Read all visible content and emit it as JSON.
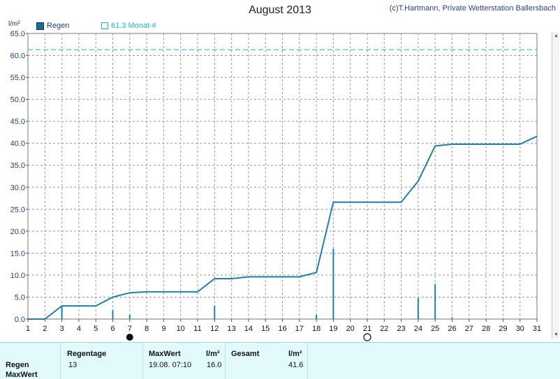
{
  "title": "August 2013",
  "credit": "(c)T.Hartmann, Private Wetterstation Ballersbach",
  "colors": {
    "accent": "#1f7fb0",
    "reference": "#3cc8d6",
    "panel": "#e2fafb"
  },
  "legend": {
    "series_label": "Regen",
    "reference_label": "61.3 Monat-#"
  },
  "chart_data": {
    "type": "line",
    "ylabel": "l/m²",
    "xlim": [
      1,
      31
    ],
    "ylim": [
      0,
      65
    ],
    "yticks": [
      "0.0",
      "5.0",
      "10.0",
      "15.0",
      "20.0",
      "25.0",
      "30.0",
      "35.0",
      "40.0",
      "45.0",
      "50.0",
      "55.0",
      "60.0",
      "65.0"
    ],
    "xticks": [
      "1",
      "2",
      "3",
      "4",
      "5",
      "6",
      "7",
      "8",
      "9",
      "10",
      "11",
      "12",
      "13",
      "14",
      "15",
      "16",
      "17",
      "18",
      "19",
      "20",
      "21",
      "22",
      "23",
      "24",
      "25",
      "26",
      "27",
      "28",
      "29",
      "30",
      "31"
    ],
    "grid": true,
    "reference_line": {
      "value": 61.3,
      "label": "61.3 Monat-#"
    },
    "cumulative": {
      "x": [
        1,
        2,
        3,
        4,
        5,
        6,
        7,
        8,
        9,
        10,
        11,
        12,
        13,
        14,
        15,
        16,
        17,
        18,
        19,
        20,
        21,
        22,
        23,
        24,
        25,
        26,
        27,
        28,
        29,
        30,
        31
      ],
      "y": [
        0,
        0,
        3.0,
        3.0,
        3.0,
        5.0,
        6.0,
        6.2,
        6.2,
        6.2,
        6.2,
        9.2,
        9.2,
        9.6,
        9.6,
        9.6,
        9.6,
        10.6,
        26.6,
        26.6,
        26.6,
        26.6,
        26.6,
        31.4,
        39.4,
        39.8,
        39.8,
        39.8,
        39.8,
        39.8,
        41.6
      ]
    },
    "daily_bars": {
      "x": [
        3,
        6,
        7,
        12,
        18,
        19,
        24,
        25,
        26
      ],
      "values": [
        3.0,
        2.0,
        1.0,
        3.0,
        1.0,
        16.0,
        4.8,
        8.0,
        0.4
      ]
    },
    "moon_phases": [
      {
        "day": 7,
        "phase": "new"
      },
      {
        "day": 21,
        "phase": "full"
      }
    ]
  },
  "summary": {
    "headers": {
      "days": "Regentage",
      "max": "MaxWert",
      "max_unit": "l/m²",
      "total": "Gesamt",
      "total_unit": "l/m²"
    },
    "rows": {
      "regen": "Regen",
      "maxwert": "MaxWert"
    },
    "values": {
      "days": "13",
      "max_time": "19.08.  07:10",
      "max_value": "16.0",
      "total": "41.6"
    }
  }
}
